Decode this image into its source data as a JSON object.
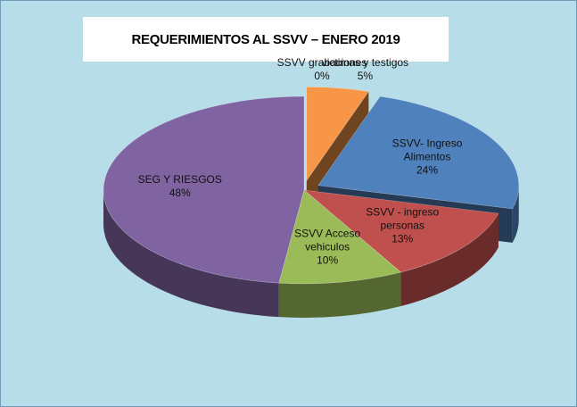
{
  "chart_data": {
    "type": "pie",
    "title": "REQUERIMIENTOS AL SSVV – ENERO 2019",
    "categories": [
      "SSVV grabaciones",
      "victimas y testigos",
      "SSVV- Ingreso Alimentos",
      "SSVV - ingreso personas",
      "SSVV Acceso vehiculos",
      "SEG Y RIESGOS"
    ],
    "values": [
      0,
      5,
      24,
      13,
      10,
      48
    ],
    "value_labels": [
      "0%",
      "5%",
      "24%",
      "13%",
      "10%",
      "48%"
    ],
    "colors": [
      "#4bacc6",
      "#f79646",
      "#4f81bd",
      "#c0504d",
      "#9bbb59",
      "#8064a2"
    ],
    "explode": [
      0,
      1,
      1,
      0,
      0,
      0
    ]
  }
}
